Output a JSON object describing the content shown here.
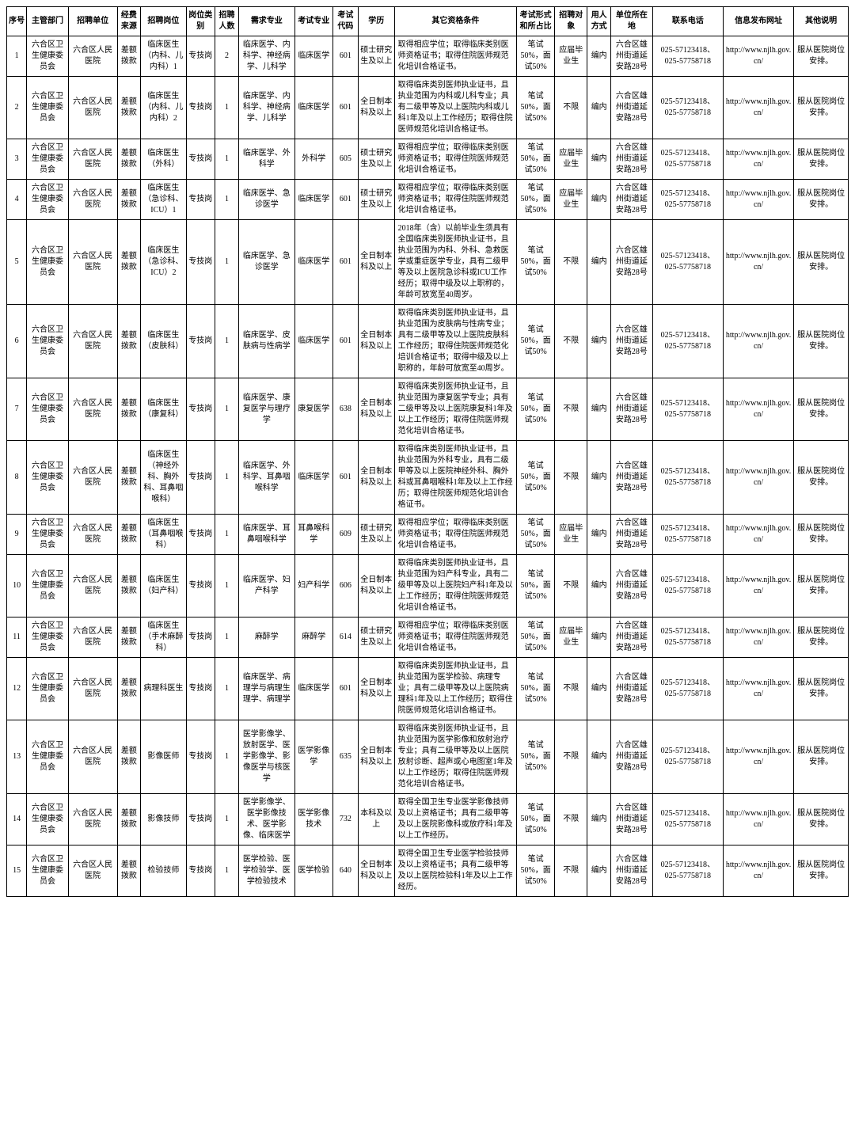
{
  "headers": [
    "序号",
    "主管部门",
    "招聘单位",
    "经费来源",
    "招聘岗位",
    "岗位类别",
    "招聘人数",
    "需求专业",
    "考试专业",
    "考试代码",
    "学历",
    "其它资格条件",
    "考试形式和所占比",
    "招聘对象",
    "用人方式",
    "单位所在地",
    "联系电话",
    "信息发布网址",
    "其他说明"
  ],
  "common": {
    "dept": "六合区卫生健康委员会",
    "unit": "六合区人民医院",
    "fund": "差额拨款",
    "cat": "专技岗",
    "form": "笔试50%，面试50%",
    "emp": "编内",
    "loc": "六合区雄州街道延安路28号",
    "phone": "025-57123418、025-57758718",
    "url": "http://www.njlh.gov.cn/",
    "note": "服从医院岗位安排。",
    "obj_grad": "应届毕业生",
    "obj_any": "不限"
  },
  "rows": [
    {
      "seq": "1",
      "post": "临床医生（内科、儿内科）1",
      "num": "2",
      "major": "临床医学、内科学、神经病学、儿科学",
      "exsub": "临床医学",
      "code": "601",
      "edu": "硕士研究生及以上",
      "qual": "取得相应学位；取得临床类别医师资格证书；取得住院医师规范化培训合格证书。",
      "obj": "grad"
    },
    {
      "seq": "2",
      "post": "临床医生（内科、儿内科）2",
      "num": "1",
      "major": "临床医学、内科学、神经病学、儿科学",
      "exsub": "临床医学",
      "code": "601",
      "edu": "全日制本科及以上",
      "qual": "取得临床类别医师执业证书，且执业范围为内科或儿科专业；具有二级甲等及以上医院内科或儿科1年及以上工作经历；取得住院医师规范化培训合格证书。",
      "obj": "any"
    },
    {
      "seq": "3",
      "post": "临床医生（外科）",
      "num": "1",
      "major": "临床医学、外科学",
      "exsub": "外科学",
      "code": "605",
      "edu": "硕士研究生及以上",
      "qual": "取得相应学位；取得临床类别医师资格证书；取得住院医师规范化培训合格证书。",
      "obj": "grad"
    },
    {
      "seq": "4",
      "post": "临床医生（急诊科、ICU）1",
      "num": "1",
      "major": "临床医学、急诊医学",
      "exsub": "临床医学",
      "code": "601",
      "edu": "硕士研究生及以上",
      "qual": "取得相应学位；取得临床类别医师资格证书；取得住院医师规范化培训合格证书。",
      "obj": "grad"
    },
    {
      "seq": "5",
      "post": "临床医生（急诊科、ICU）2",
      "num": "1",
      "major": "临床医学、急诊医学",
      "exsub": "临床医学",
      "code": "601",
      "edu": "全日制本科及以上",
      "qual": "2018年（含）以前毕业生须具有全国临床类别医师执业证书，且执业范围为内科、外科、急救医学或重症医学专业，具有二级甲等及以上医院急诊科或ICU工作经历；取得中级及以上职称的，年龄可放宽至40周岁。",
      "obj": "any"
    },
    {
      "seq": "6",
      "post": "临床医生（皮肤科）",
      "num": "1",
      "major": "临床医学、皮肤病与性病学",
      "exsub": "临床医学",
      "code": "601",
      "edu": "全日制本科及以上",
      "qual": "取得临床类别医师执业证书，且执业范围为皮肤病与性病专业；具有二级甲等及以上医院皮肤科工作经历；取得住院医师规范化培训合格证书；取得中级及以上职称的，年龄可放宽至40周岁。",
      "obj": "any"
    },
    {
      "seq": "7",
      "post": "临床医生（康复科）",
      "num": "1",
      "major": "临床医学、康复医学与理疗学",
      "exsub": "康复医学",
      "code": "638",
      "edu": "全日制本科及以上",
      "qual": "取得临床类别医师执业证书，且执业范围为康复医学专业；具有二级甲等及以上医院康复科1年及以上工作经历；取得住院医师规范化培训合格证书。",
      "obj": "any"
    },
    {
      "seq": "8",
      "post": "临床医生（神经外科、胸外科、耳鼻咽喉科）",
      "num": "1",
      "major": "临床医学、外科学、耳鼻咽喉科学",
      "exsub": "临床医学",
      "code": "601",
      "edu": "全日制本科及以上",
      "qual": "取得临床类别医师执业证书，且执业范围为外科专业，具有二级甲等及以上医院神经外科、胸外科或耳鼻咽喉科1年及以上工作经历；取得住院医师规范化培训合格证书。",
      "obj": "any"
    },
    {
      "seq": "9",
      "post": "临床医生（耳鼻咽喉科）",
      "num": "1",
      "major": "临床医学、耳鼻咽喉科学",
      "exsub": "耳鼻喉科学",
      "code": "609",
      "edu": "硕士研究生及以上",
      "qual": "取得相应学位；取得临床类别医师资格证书；取得住院医师规范化培训合格证书。",
      "obj": "grad"
    },
    {
      "seq": "10",
      "post": "临床医生（妇产科）",
      "num": "1",
      "major": "临床医学、妇产科学",
      "exsub": "妇产科学",
      "code": "606",
      "edu": "全日制本科及以上",
      "qual": "取得临床类别医师执业证书，且执业范围为妇产科专业，具有二级甲等及以上医院妇产科1年及以上工作经历；取得住院医师规范化培训合格证书。",
      "obj": "any"
    },
    {
      "seq": "11",
      "post": "临床医生（手术麻醉科）",
      "num": "1",
      "major": "麻醉学",
      "exsub": "麻醉学",
      "code": "614",
      "edu": "硕士研究生及以上",
      "qual": "取得相应学位；取得临床类别医师资格证书；取得住院医师规范化培训合格证书。",
      "obj": "grad"
    },
    {
      "seq": "12",
      "post": "病理科医生",
      "num": "1",
      "major": "临床医学、病理学与病理生理学、病理学",
      "exsub": "临床医学",
      "code": "601",
      "edu": "全日制本科及以上",
      "qual": "取得临床类别医师执业证书，且执业范围为医学检验、病理专业；具有二级甲等及以上医院病理科1年及以上工作经历；取得住院医师规范化培训合格证书。",
      "obj": "any"
    },
    {
      "seq": "13",
      "post": "影像医师",
      "num": "1",
      "major": "医学影像学、放射医学、医学影像学、影像医学与核医学",
      "exsub": "医学影像学",
      "code": "635",
      "edu": "全日制本科及以上",
      "qual": "取得临床类别医师执业证书，且执业范围为医学影像和放射治疗专业；具有二级甲等及以上医院放射诊断、超声或心电图室1年及以上工作经历；取得住院医师规范化培训合格证书。",
      "obj": "any"
    },
    {
      "seq": "14",
      "post": "影像技师",
      "num": "1",
      "major": "医学影像学、医学影像技术、医学影像、临床医学",
      "exsub": "医学影像技术",
      "code": "732",
      "edu": "本科及以上",
      "qual": "取得全国卫生专业医学影像技师及以上资格证书；具有二级甲等及以上医院影像科或放疗科1年及以上工作经历。",
      "obj": "any"
    },
    {
      "seq": "15",
      "post": "检验技师",
      "num": "1",
      "major": "医学检验、医学检验学、医学检验技术",
      "exsub": "医学检验",
      "code": "640",
      "edu": "全日制本科及以上",
      "qual": "取得全国卫生专业医学检验技师及以上资格证书；具有二级甲等及以上医院检验科1年及以上工作经历。",
      "obj": "any"
    }
  ]
}
